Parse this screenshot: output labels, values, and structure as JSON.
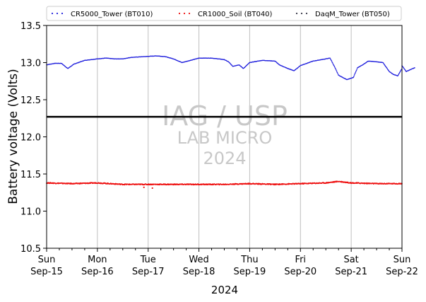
{
  "chart_data": {
    "type": "scatter",
    "title": "",
    "xlabel": "2024",
    "ylabel": "Battery voltage (Volts)",
    "xlim": [
      "2024-09-15",
      "2024-09-22"
    ],
    "ylim": [
      10.5,
      13.5
    ],
    "yticks": [
      10.5,
      11.0,
      11.5,
      12.0,
      12.5,
      13.0,
      13.5
    ],
    "xticks": [
      {
        "day": "Sun",
        "date": "Sep-15"
      },
      {
        "day": "Mon",
        "date": "Sep-16"
      },
      {
        "day": "Tue",
        "date": "Sep-17"
      },
      {
        "day": "Wed",
        "date": "Sep-18"
      },
      {
        "day": "Thu",
        "date": "Sep-19"
      },
      {
        "day": "Fri",
        "date": "Sep-20"
      },
      {
        "day": "Sat",
        "date": "Sep-21"
      },
      {
        "day": "Sun",
        "date": "Sep-22"
      }
    ],
    "grid": "vertical",
    "legend_placement": "top",
    "hline": {
      "y": 12.27,
      "color": "#000000"
    },
    "watermark": {
      "line1": "IAG / USP",
      "line2": "LAB MICRO",
      "line3": "2024"
    },
    "series": [
      {
        "name": "CR5000_Tower (BT010)",
        "color": "#2222dd",
        "points": [
          [
            "2024-09-15 00:00",
            12.97
          ],
          [
            "2024-09-15 04:00",
            12.99
          ],
          [
            "2024-09-15 07:00",
            12.99
          ],
          [
            "2024-09-15 10:00",
            12.92
          ],
          [
            "2024-09-15 13:00",
            12.98
          ],
          [
            "2024-09-15 18:00",
            13.03
          ],
          [
            "2024-09-16 00:00",
            13.05
          ],
          [
            "2024-09-16 04:00",
            13.06
          ],
          [
            "2024-09-16 08:00",
            13.05
          ],
          [
            "2024-09-16 12:00",
            13.05
          ],
          [
            "2024-09-16 16:00",
            13.07
          ],
          [
            "2024-09-16 22:00",
            13.08
          ],
          [
            "2024-09-17 04:00",
            13.09
          ],
          [
            "2024-09-17 08:00",
            13.08
          ],
          [
            "2024-09-17 12:00",
            13.05
          ],
          [
            "2024-09-17 16:00",
            13.0
          ],
          [
            "2024-09-17 20:00",
            13.03
          ],
          [
            "2024-09-18 00:00",
            13.06
          ],
          [
            "2024-09-18 06:00",
            13.06
          ],
          [
            "2024-09-18 12:00",
            13.04
          ],
          [
            "2024-09-18 14:00",
            13.01
          ],
          [
            "2024-09-18 16:00",
            12.95
          ],
          [
            "2024-09-18 19:00",
            12.97
          ],
          [
            "2024-09-18 21:00",
            12.92
          ],
          [
            "2024-09-19 00:00",
            13.0
          ],
          [
            "2024-09-19 06:00",
            13.03
          ],
          [
            "2024-09-19 12:00",
            13.02
          ],
          [
            "2024-09-19 14:00",
            12.97
          ],
          [
            "2024-09-19 18:00",
            12.92
          ],
          [
            "2024-09-19 21:00",
            12.89
          ],
          [
            "2024-09-20 00:00",
            12.96
          ],
          [
            "2024-09-20 06:00",
            13.02
          ],
          [
            "2024-09-20 10:00",
            13.04
          ],
          [
            "2024-09-20 14:00",
            13.06
          ],
          [
            "2024-09-20 16:00",
            12.95
          ],
          [
            "2024-09-20 18:00",
            12.83
          ],
          [
            "2024-09-20 22:00",
            12.77
          ],
          [
            "2024-09-21 01:00",
            12.8
          ],
          [
            "2024-09-21 03:00",
            12.93
          ],
          [
            "2024-09-21 06:00",
            12.98
          ],
          [
            "2024-09-21 08:00",
            13.02
          ],
          [
            "2024-09-21 12:00",
            13.01
          ],
          [
            "2024-09-21 15:00",
            13.0
          ],
          [
            "2024-09-21 18:00",
            12.88
          ],
          [
            "2024-09-21 20:00",
            12.84
          ],
          [
            "2024-09-21 22:00",
            12.82
          ],
          [
            "2024-09-22 02:00",
            12.88
          ],
          [
            "2024-09-22 06:00",
            12.93
          ],
          [
            "2024-09-22 00:00",
            12.92
          ],
          [
            "2024-09-22 00:00",
            12.96
          ]
        ]
      },
      {
        "name": "CR1000_Soil (BT040)",
        "color": "#ee1111",
        "points": [
          [
            "2024-09-15 00:00",
            11.38
          ],
          [
            "2024-09-15 12:00",
            11.37
          ],
          [
            "2024-09-16 00:00",
            11.38
          ],
          [
            "2024-09-16 12:00",
            11.36
          ],
          [
            "2024-09-17 00:00",
            11.36
          ],
          [
            "2024-09-17 12:00",
            11.36
          ],
          [
            "2024-09-18 00:00",
            11.36
          ],
          [
            "2024-09-18 12:00",
            11.36
          ],
          [
            "2024-09-19 00:00",
            11.37
          ],
          [
            "2024-09-19 12:00",
            11.36
          ],
          [
            "2024-09-20 00:00",
            11.37
          ],
          [
            "2024-09-20 12:00",
            11.38
          ],
          [
            "2024-09-20 18:00",
            11.4
          ],
          [
            "2024-09-21 00:00",
            11.38
          ],
          [
            "2024-09-21 12:00",
            11.37
          ],
          [
            "2024-09-22 00:00",
            11.37
          ]
        ],
        "outliers": [
          [
            "2024-09-16 22:00",
            11.32
          ],
          [
            "2024-09-17 02:00",
            11.31
          ]
        ]
      },
      {
        "name": "DaqM_Tower (BT050)",
        "color": "#333344",
        "points": []
      }
    ]
  }
}
